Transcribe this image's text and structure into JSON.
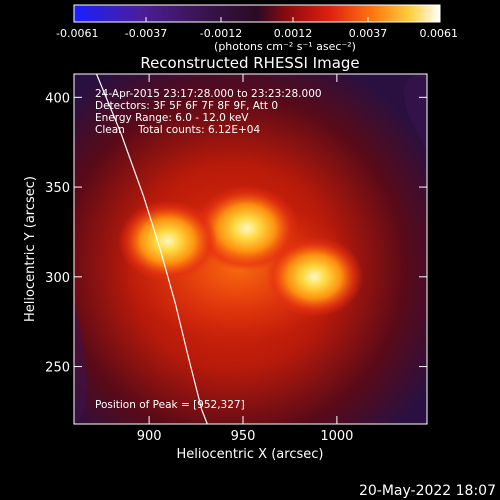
{
  "chart_data": {
    "type": "heatmap",
    "title": "Reconstructed RHESSI Image",
    "xlabel": "Heliocentric X (arcsec)",
    "ylabel": "Heliocentric Y (arcsec)",
    "xlim": [
      860,
      1048
    ],
    "ylim": [
      218,
      413
    ],
    "xticks": [
      900,
      950,
      1000
    ],
    "yticks": [
      250,
      300,
      350,
      400
    ],
    "colorbar": {
      "ticks": [
        "-0.0061",
        "-0.0037",
        "-0.0012",
        "0.0012",
        "0.0037",
        "0.0061"
      ],
      "tick_values": [
        -0.0061,
        -0.0037,
        -0.0012,
        0.0012,
        0.0037,
        0.0061
      ],
      "unit_label": "(photons cm⁻² s⁻¹ asec⁻²)",
      "colormap": "hot / rainbow-3 (blue-purple-red-orange-yellow-white)"
    },
    "sources": [
      {
        "x": 952,
        "y": 327,
        "relative_intensity": 1.0
      },
      {
        "x": 910,
        "y": 320,
        "relative_intensity": 0.92
      },
      {
        "x": 988,
        "y": 300,
        "relative_intensity": 0.9
      }
    ],
    "limb_curve": [
      [
        872,
        413
      ],
      [
        885,
        380
      ],
      [
        897,
        345
      ],
      [
        906,
        315
      ],
      [
        914,
        285
      ],
      [
        921,
        255
      ],
      [
        928,
        226
      ],
      [
        931,
        218
      ]
    ],
    "info_lines": [
      "24-Apr-2015 23:17:28.000 to 23:23:28.000",
      "Detectors: 3F 5F 6F 7F 8F 9F, Att 0",
      "Energy Range: 6.0 - 12.0 keV",
      "Clean    Total counts: 6.12E+04"
    ],
    "peak_text": "Position of Peak = [952,327]",
    "footer_date": "20-May-2022 18:07"
  }
}
